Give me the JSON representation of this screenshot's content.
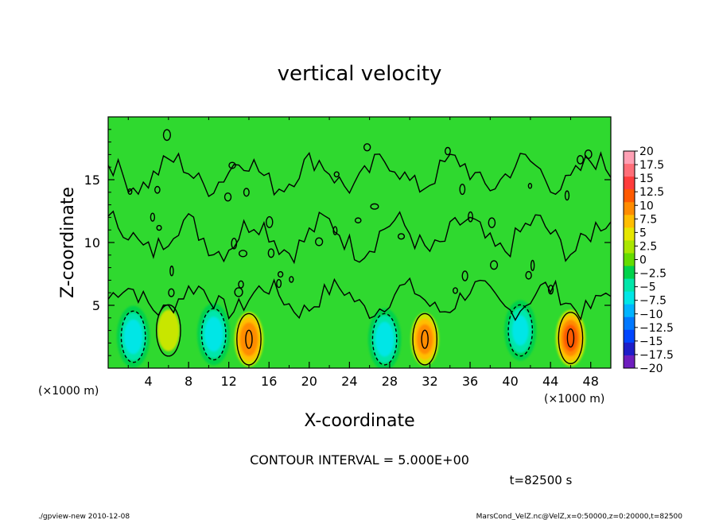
{
  "chart_data": {
    "type": "heatmap",
    "title": "vertical velocity",
    "xlabel": "X-coordinate",
    "ylabel": "Z-coordinate",
    "x_unit_left": "(×1000 m)",
    "x_unit_right": "(×1000 m)",
    "xlim": [
      0,
      50
    ],
    "ylim": [
      0,
      20
    ],
    "x_ticks": [
      "4",
      "8",
      "12",
      "16",
      "20",
      "24",
      "28",
      "32",
      "36",
      "40",
      "44",
      "48"
    ],
    "y_ticks": [
      "5",
      "10",
      "15"
    ],
    "contour_interval": "CONTOUR INTERVAL = 5.000E+00",
    "time_label": "t=82500 s",
    "colorbar_labels": [
      "20",
      "17.5",
      "15",
      "12.5",
      "10",
      "7.5",
      "5",
      "2.5",
      "0",
      "−2.5",
      "−5",
      "−7.5",
      "−10",
      "−12.5",
      "−15",
      "−17.5",
      "−20"
    ],
    "colorbar_colors": [
      "#ffa0b4",
      "#ff6e78",
      "#ff3c3c",
      "#ff5a00",
      "#ff8c00",
      "#ffbe00",
      "#e6e600",
      "#aae600",
      "#64dc00",
      "#00d24b",
      "#00e6aa",
      "#00e6e6",
      "#00b4ff",
      "#0078ff",
      "#0046ff",
      "#1e1ec8",
      "#6e1ebe"
    ],
    "cells": [
      {
        "x": 2.5,
        "z": 2.5,
        "w": -8
      },
      {
        "x": 6.0,
        "z": 3.0,
        "w": 6
      },
      {
        "x": 10.5,
        "z": 2.7,
        "w": -8
      },
      {
        "x": 14.0,
        "z": 2.3,
        "w": 11
      },
      {
        "x": 27.5,
        "z": 2.3,
        "w": -8
      },
      {
        "x": 31.5,
        "z": 2.3,
        "w": 10
      },
      {
        "x": 41.0,
        "z": 3.0,
        "w": -7
      },
      {
        "x": 46.0,
        "z": 2.4,
        "w": 12
      }
    ],
    "background_w": 0.5
  },
  "footer": {
    "left": "./gpview-new   2010-12-08",
    "right": "MarsCond_VelZ.nc@VelZ,x=0:50000,z=0:20000,t=82500"
  }
}
